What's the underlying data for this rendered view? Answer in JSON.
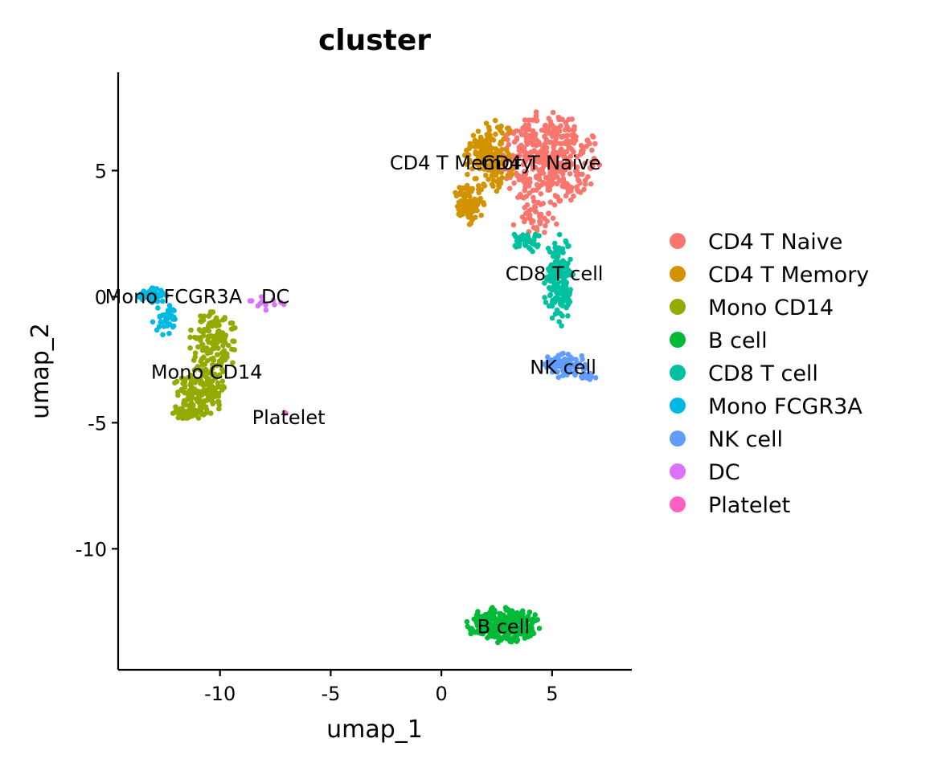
{
  "chart_data": {
    "type": "scatter",
    "title": "cluster",
    "xlabel": "umap_1",
    "ylabel": "umap_2",
    "xlim": [
      -14.6,
      8.6
    ],
    "ylim": [
      -14.8,
      8.9
    ],
    "x_ticks": [
      -10,
      -5,
      0,
      5
    ],
    "x_tick_labels": [
      "-10",
      "-5",
      "0",
      "5"
    ],
    "y_ticks": [
      -10,
      -5,
      0,
      5
    ],
    "y_tick_labels": [
      "-10",
      "-5",
      "0",
      "5"
    ],
    "grid": false,
    "legend_position": "right",
    "series": [
      {
        "name": "CD4 T Naive",
        "color": "#F8766D",
        "label": "CD4 T Naive",
        "label_pos": [
          4.5,
          5.3
        ],
        "blobs": [
          {
            "cx": 4.8,
            "cy": 5.5,
            "rx": 2.4,
            "ry": 1.9,
            "n": 420
          },
          {
            "cx": 4.2,
            "cy": 3.2,
            "rx": 1.1,
            "ry": 0.8,
            "n": 40
          }
        ]
      },
      {
        "name": "CD4 T Memory",
        "color": "#D39200",
        "label": "CD4 T Memory",
        "label_pos": [
          0.9,
          5.3
        ],
        "blobs": [
          {
            "cx": 2.2,
            "cy": 5.6,
            "rx": 1.2,
            "ry": 1.5,
            "n": 180
          },
          {
            "cx": 1.3,
            "cy": 3.7,
            "rx": 0.8,
            "ry": 0.9,
            "n": 90
          }
        ]
      },
      {
        "name": "Mono CD14",
        "color": "#93AA00",
        "label": "Mono CD14",
        "label_pos": [
          -10.6,
          -3.0
        ],
        "blobs": [
          {
            "cx": -10.3,
            "cy": -1.8,
            "rx": 1.1,
            "ry": 1.4,
            "n": 150
          },
          {
            "cx": -10.9,
            "cy": -3.8,
            "rx": 1.3,
            "ry": 1.0,
            "n": 140
          },
          {
            "cx": -11.5,
            "cy": -4.6,
            "rx": 0.9,
            "ry": 0.35,
            "n": 40
          }
        ]
      },
      {
        "name": "B cell",
        "color": "#00BA38",
        "label": "B cell",
        "label_pos": [
          2.8,
          -13.1
        ],
        "blobs": [
          {
            "cx": 2.8,
            "cy": -13.0,
            "rx": 1.7,
            "ry": 0.75,
            "n": 300
          }
        ]
      },
      {
        "name": "CD8 T cell",
        "color": "#00C19F",
        "label": "CD8 T cell",
        "label_pos": [
          5.1,
          0.9
        ],
        "blobs": [
          {
            "cx": 5.3,
            "cy": 0.6,
            "rx": 0.7,
            "ry": 1.9,
            "n": 170
          },
          {
            "cx": 4.0,
            "cy": 2.2,
            "rx": 0.9,
            "ry": 0.45,
            "n": 40
          }
        ]
      },
      {
        "name": "Mono FCGR3A",
        "color": "#00B9E3",
        "label": "Mono FCGR3A",
        "label_pos": [
          -12.1,
          0.0
        ],
        "blobs": [
          {
            "cx": -13.0,
            "cy": 0.1,
            "rx": 0.7,
            "ry": 0.35,
            "n": 50
          },
          {
            "cx": -12.5,
            "cy": -0.9,
            "rx": 0.55,
            "ry": 0.7,
            "n": 40
          }
        ]
      },
      {
        "name": "NK cell",
        "color": "#619CFF",
        "label": "NK cell",
        "label_pos": [
          5.5,
          -2.8
        ],
        "blobs": [
          {
            "cx": 5.6,
            "cy": -2.7,
            "rx": 1.0,
            "ry": 0.55,
            "n": 90
          },
          {
            "cx": 6.6,
            "cy": -3.1,
            "rx": 0.5,
            "ry": 0.2,
            "n": 15
          }
        ]
      },
      {
        "name": "DC",
        "color": "#DB72FB",
        "label": "DC",
        "label_pos": [
          -7.5,
          0.0
        ],
        "blobs": [
          {
            "cx": -8.0,
            "cy": -0.3,
            "rx": 0.9,
            "ry": 0.4,
            "n": 12
          }
        ]
      },
      {
        "name": "Platelet",
        "color": "#FF61C3",
        "label": "Platelet",
        "label_pos": [
          -6.9,
          -4.8
        ],
        "blobs": [
          {
            "cx": -7.0,
            "cy": -4.6,
            "rx": 0.1,
            "ry": 0.08,
            "n": 2
          }
        ]
      }
    ]
  }
}
